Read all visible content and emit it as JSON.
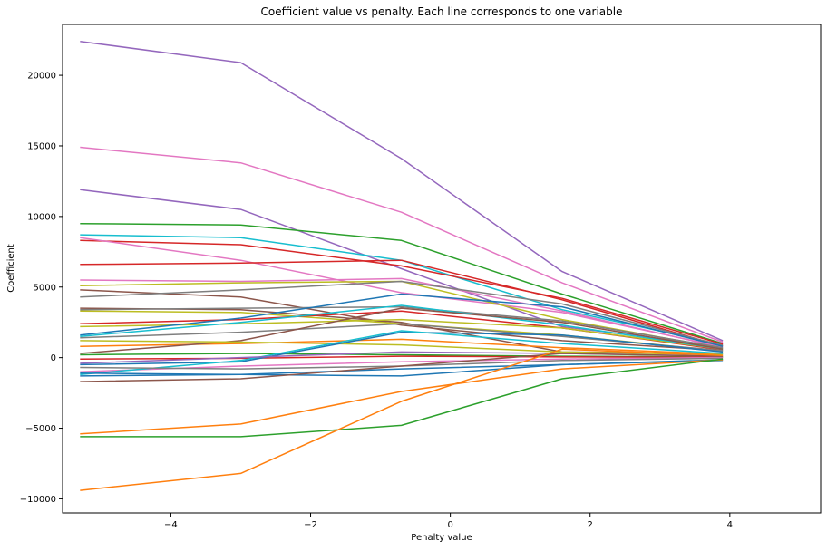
{
  "chart_data": {
    "type": "line",
    "title": "Coefficient value vs penalty. Each line corresponds to one variable",
    "xlabel": "Penalty value",
    "ylabel": "Coefficient",
    "xlim": [
      -5.55,
      5.3
    ],
    "ylim": [
      -11000,
      23600
    ],
    "grid": false,
    "legend": "none",
    "x": [
      -5.3,
      -3.0,
      -0.7,
      1.6,
      3.9
    ],
    "x_ticks": [
      -4,
      -2,
      0,
      2,
      4
    ],
    "x_tick_labels": [
      "−4",
      "−2",
      "0",
      "2",
      "4"
    ],
    "y_ticks": [
      -10000,
      -5000,
      0,
      5000,
      10000,
      15000,
      20000
    ],
    "y_tick_labels": [
      "−10000",
      "−5000",
      "0",
      "5000",
      "10000",
      "15000",
      "20000"
    ],
    "series": [
      {
        "color": "#9467bd",
        "values": [
          22400,
          20900,
          14100,
          6100,
          1200
        ]
      },
      {
        "color": "#e377c2",
        "values": [
          14900,
          13800,
          10300,
          5300,
          1100
        ]
      },
      {
        "color": "#9467bd",
        "values": [
          11900,
          10500,
          6300,
          2200,
          800
        ]
      },
      {
        "color": "#2ca02c",
        "values": [
          9500,
          9400,
          8300,
          4500,
          1000
        ]
      },
      {
        "color": "#17becf",
        "values": [
          8700,
          8500,
          6900,
          3400,
          900
        ]
      },
      {
        "color": "#d62728",
        "values": [
          8300,
          8000,
          6500,
          4200,
          950
        ]
      },
      {
        "color": "#e377c2",
        "values": [
          8500,
          6900,
          4600,
          3200,
          750
        ]
      },
      {
        "color": "#d62728",
        "values": [
          6600,
          6700,
          6900,
          4100,
          800
        ]
      },
      {
        "color": "#e377c2",
        "values": [
          5500,
          5400,
          5600,
          3300,
          700
        ]
      },
      {
        "color": "#bcbd22",
        "values": [
          5100,
          5300,
          5400,
          2700,
          650
        ]
      },
      {
        "color": "#8c564b",
        "values": [
          4800,
          4300,
          2300,
          1200,
          500
        ]
      },
      {
        "color": "#7f7f7f",
        "values": [
          4300,
          4800,
          5400,
          3800,
          850
        ]
      },
      {
        "color": "#8c564b",
        "values": [
          3500,
          3400,
          2500,
          400,
          300
        ]
      },
      {
        "color": "#7f7f7f",
        "values": [
          3400,
          3500,
          3600,
          2600,
          700
        ]
      },
      {
        "color": "#bcbd22",
        "values": [
          3300,
          3200,
          2400,
          1600,
          450
        ]
      },
      {
        "color": "#d62728",
        "values": [
          2400,
          2700,
          3300,
          2100,
          550
        ]
      },
      {
        "color": "#bcbd22",
        "values": [
          2200,
          2400,
          2700,
          2100,
          600
        ]
      },
      {
        "color": "#1f77b4",
        "values": [
          1600,
          2800,
          4500,
          3600,
          800
        ]
      },
      {
        "color": "#17becf",
        "values": [
          1500,
          2500,
          3700,
          2300,
          600
        ]
      },
      {
        "color": "#7f7f7f",
        "values": [
          1400,
          1800,
          2400,
          1500,
          500
        ]
      },
      {
        "color": "#ff7f0e",
        "values": [
          800,
          1000,
          1300,
          700,
          250
        ]
      },
      {
        "color": "#8c564b",
        "values": [
          300,
          1200,
          3500,
          2500,
          600
        ]
      },
      {
        "color": "#bcbd22",
        "values": [
          1200,
          1100,
          900,
          400,
          200
        ]
      },
      {
        "color": "#2ca02c",
        "values": [
          200,
          300,
          200,
          100,
          50
        ]
      },
      {
        "color": "#d62728",
        "values": [
          -100,
          -50,
          100,
          50,
          20
        ]
      },
      {
        "color": "#1f77b4",
        "values": [
          -500,
          -300,
          1800,
          1600,
          400
        ]
      },
      {
        "color": "#e377c2",
        "values": [
          -1000,
          -600,
          -300,
          -100,
          0
        ]
      },
      {
        "color": "#17becf",
        "values": [
          -1200,
          -200,
          1900,
          1000,
          300
        ]
      },
      {
        "color": "#7f7f7f",
        "values": [
          -700,
          -800,
          -600,
          -200,
          -50
        ]
      },
      {
        "color": "#9467bd",
        "values": [
          -400,
          0,
          400,
          300,
          100
        ]
      },
      {
        "color": "#1f77b4",
        "values": [
          -1300,
          -1200,
          -800,
          -500,
          -150
        ]
      },
      {
        "color": "#1f77b4",
        "values": [
          -1100,
          -1200,
          -1300,
          -500,
          -200
        ]
      },
      {
        "color": "#8c564b",
        "values": [
          -1700,
          -1500,
          -600,
          300,
          100
        ]
      },
      {
        "color": "#ff7f0e",
        "values": [
          -5400,
          -4700,
          -2400,
          -800,
          -150
        ]
      },
      {
        "color": "#2ca02c",
        "values": [
          -5600,
          -5600,
          -4800,
          -1500,
          -100
        ]
      },
      {
        "color": "#ff7f0e",
        "values": [
          -9400,
          -8200,
          -3100,
          600,
          150
        ]
      }
    ]
  }
}
